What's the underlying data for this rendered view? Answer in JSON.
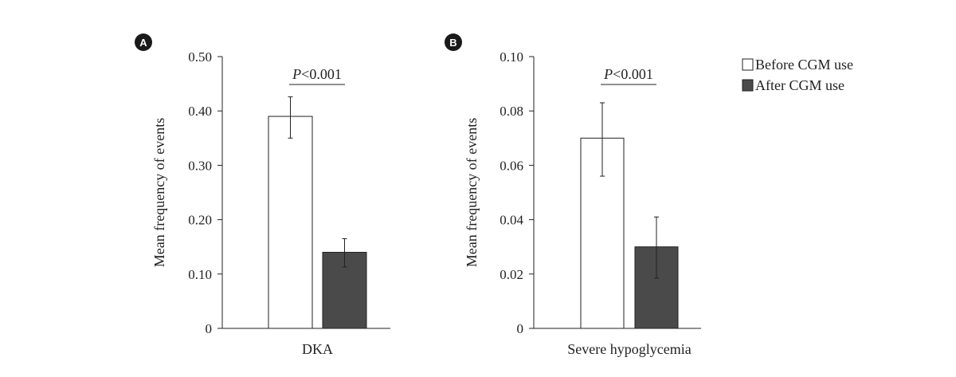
{
  "colors": {
    "before": "#ffffff",
    "after": "#4a4a4a",
    "stroke": "#222222"
  },
  "legend": [
    {
      "label": "Before CGM use",
      "color": "#ffffff"
    },
    {
      "label": "After CGM use",
      "color": "#4a4a4a"
    }
  ],
  "chart_data": [
    {
      "type": "bar",
      "panel": "A",
      "ylabel": "Mean frequency of events",
      "categories": [
        "DKA"
      ],
      "ylim": [
        0,
        0.5
      ],
      "yticks": [
        0,
        0.1,
        0.2,
        0.3,
        0.4,
        0.5
      ],
      "ytick_labels": [
        "0",
        "0.10",
        "0.20",
        "0.30",
        "0.40",
        "0.50"
      ],
      "series": [
        {
          "name": "Before CGM use",
          "values": [
            0.39
          ],
          "error_low": [
            0.35
          ],
          "error_high": [
            0.426
          ]
        },
        {
          "name": "After CGM use",
          "values": [
            0.14
          ],
          "error_low": [
            0.113
          ],
          "error_high": [
            0.165
          ]
        }
      ],
      "annotation": {
        "p_italic": "P",
        "p_rest": "<0.001"
      }
    },
    {
      "type": "bar",
      "panel": "B",
      "ylabel": "Mean frequency of events",
      "categories": [
        "Severe hypoglycemia"
      ],
      "ylim": [
        0,
        0.1
      ],
      "yticks": [
        0,
        0.02,
        0.04,
        0.06,
        0.08,
        0.1
      ],
      "ytick_labels": [
        "0",
        "0.02",
        "0.04",
        "0.06",
        "0.08",
        "0.10"
      ],
      "series": [
        {
          "name": "Before CGM use",
          "values": [
            0.07
          ],
          "error_low": [
            0.056
          ],
          "error_high": [
            0.083
          ]
        },
        {
          "name": "After CGM use",
          "values": [
            0.03
          ],
          "error_low": [
            0.0185
          ],
          "error_high": [
            0.041
          ]
        }
      ],
      "annotation": {
        "p_italic": "P",
        "p_rest": "<0.001"
      }
    }
  ]
}
